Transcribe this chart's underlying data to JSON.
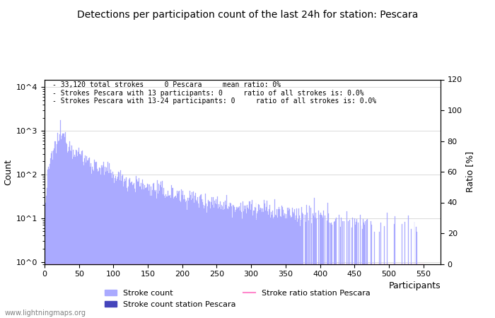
{
  "title": "Detections per participation count of the last 24h for station: Pescara",
  "annotation_lines": [
    "33,120 total strokes     0 Pescara     mean ratio: 0%",
    "Strokes Pescara with 13 participants: 0     ratio of all strokes is: 0.0%",
    "Strokes Pescara with 13-24 participants: 0     ratio of all strokes is: 0.0%"
  ],
  "xlabel": "Participants",
  "ylabel_left": "Count",
  "ylabel_right": "Ratio [%]",
  "xlim": [
    0,
    575
  ],
  "right_ylim": [
    0,
    120
  ],
  "right_yticks": [
    0,
    20,
    40,
    60,
    80,
    100,
    120
  ],
  "xticks": [
    0,
    50,
    100,
    150,
    200,
    250,
    300,
    350,
    400,
    450,
    500,
    550
  ],
  "bar_color": "#aaaaff",
  "station_bar_color": "#4444bb",
  "ratio_line_color": "#ff88cc",
  "watermark": "www.lightningmaps.org",
  "legend_items": [
    {
      "label": "Stroke count",
      "color": "#aaaaff"
    },
    {
      "label": "Stroke count station Pescara",
      "color": "#4444bb"
    },
    {
      "label": "Stroke ratio station Pescara",
      "color": "#ff88cc"
    }
  ]
}
